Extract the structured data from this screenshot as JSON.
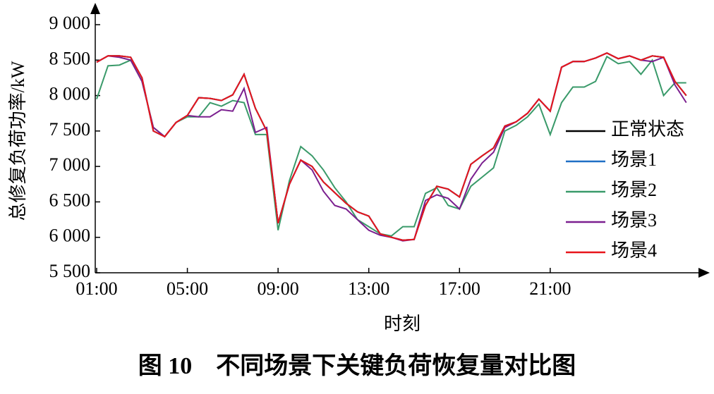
{
  "chart_data": {
    "type": "line",
    "title": "图 10　不同场景下关键负荷恢复量对比图",
    "xlabel": "时刻",
    "ylabel": "总修复负荷功率/kW",
    "x": [
      1,
      1.5,
      2,
      2.5,
      3,
      3.5,
      4,
      4.5,
      5,
      5.5,
      6,
      6.5,
      7,
      7.5,
      8,
      8.5,
      9,
      9.5,
      10,
      10.5,
      11,
      11.5,
      12,
      12.5,
      13,
      13.5,
      14,
      14.5,
      15,
      15.5,
      16,
      16.5,
      17,
      17.5,
      18,
      18.5,
      19,
      19.5,
      20,
      20.5,
      21,
      21.5,
      22,
      22.5,
      23,
      23.5,
      24,
      24.5,
      25,
      25.5,
      26,
      26.5,
      27
    ],
    "series": [
      {
        "name": "正常状态",
        "color": "#000000",
        "values": [
          8470,
          8560,
          8560,
          8540,
          8250,
          7500,
          7420,
          7620,
          7720,
          7970,
          7960,
          7930,
          8010,
          8300,
          7820,
          7500,
          6200,
          6750,
          7090,
          7000,
          6780,
          6630,
          6480,
          6360,
          6300,
          6050,
          6000,
          5960,
          5970,
          6450,
          6720,
          6680,
          6570,
          7030,
          7150,
          7260,
          7570,
          7630,
          7750,
          7950,
          7780,
          8400,
          8480,
          8480,
          8530,
          8600,
          8520,
          8560,
          8500,
          8560,
          8540,
          8200,
          8000
        ]
      },
      {
        "name": "场景1",
        "color": "#1f6fc5",
        "values": [
          8470,
          8560,
          8560,
          8540,
          8250,
          7500,
          7420,
          7620,
          7720,
          7970,
          7960,
          7930,
          8010,
          8300,
          7820,
          7500,
          6200,
          6750,
          7090,
          7000,
          6780,
          6630,
          6480,
          6360,
          6300,
          6050,
          6000,
          5960,
          5970,
          6450,
          6720,
          6680,
          6570,
          7030,
          7150,
          7260,
          7570,
          7630,
          7750,
          7950,
          7780,
          8400,
          8480,
          8480,
          8530,
          8600,
          8520,
          8560,
          8500,
          8560,
          8540,
          8200,
          8000
        ]
      },
      {
        "name": "场景2",
        "color": "#3a9a6a",
        "values": [
          7950,
          8420,
          8430,
          8500,
          8200,
          7550,
          7420,
          7620,
          7700,
          7700,
          7900,
          7850,
          7930,
          7900,
          7450,
          7450,
          6100,
          6800,
          7280,
          7150,
          6950,
          6700,
          6500,
          6250,
          6150,
          6050,
          6020,
          6150,
          6150,
          6620,
          6700,
          6450,
          6400,
          6720,
          6850,
          6980,
          7500,
          7580,
          7700,
          7880,
          7450,
          7900,
          8120,
          8120,
          8200,
          8550,
          8450,
          8480,
          8300,
          8500,
          8000,
          8180,
          8180
        ]
      },
      {
        "name": "场景3",
        "color": "#7b1f8f",
        "values": [
          8470,
          8560,
          8540,
          8500,
          8200,
          7550,
          7420,
          7620,
          7720,
          7700,
          7700,
          7800,
          7780,
          8100,
          7480,
          7550,
          6200,
          6750,
          7090,
          6950,
          6650,
          6450,
          6400,
          6250,
          6100,
          6030,
          6000,
          5950,
          5970,
          6520,
          6600,
          6550,
          6400,
          6820,
          7050,
          7200,
          7550,
          7630,
          7750,
          7950,
          7780,
          8400,
          8480,
          8480,
          8530,
          8600,
          8520,
          8560,
          8500,
          8480,
          8540,
          8150,
          7900
        ]
      },
      {
        "name": "场景4",
        "color": "#e8151b",
        "values": [
          8470,
          8560,
          8560,
          8540,
          8250,
          7500,
          7420,
          7620,
          7720,
          7970,
          7960,
          7930,
          8010,
          8300,
          7820,
          7500,
          6200,
          6750,
          7090,
          7000,
          6780,
          6630,
          6480,
          6360,
          6300,
          6050,
          6000,
          5960,
          5970,
          6450,
          6720,
          6680,
          6570,
          7030,
          7150,
          7260,
          7570,
          7630,
          7750,
          7950,
          7780,
          8400,
          8480,
          8480,
          8530,
          8600,
          8520,
          8560,
          8500,
          8560,
          8540,
          8200,
          8000
        ]
      }
    ],
    "xlim": [
      1,
      27.6
    ],
    "xticks": [
      {
        "value": 1,
        "label": "01:00"
      },
      {
        "value": 5,
        "label": "05:00"
      },
      {
        "value": 9,
        "label": "09:00"
      },
      {
        "value": 13,
        "label": "13:00"
      },
      {
        "value": 17,
        "label": "17:00"
      },
      {
        "value": 21,
        "label": "21:00"
      }
    ],
    "ylim": [
      5500,
      9000
    ],
    "yticks": [
      {
        "value": 5500,
        "label": "5 500"
      },
      {
        "value": 6000,
        "label": "6 000"
      },
      {
        "value": 6500,
        "label": "6 500"
      },
      {
        "value": 7000,
        "label": "7 000"
      },
      {
        "value": 7500,
        "label": "7 500"
      },
      {
        "value": 8000,
        "label": "8 000"
      },
      {
        "value": 8500,
        "label": "8 500"
      },
      {
        "value": 9000,
        "label": "9 000"
      }
    ],
    "legend": "right"
  }
}
